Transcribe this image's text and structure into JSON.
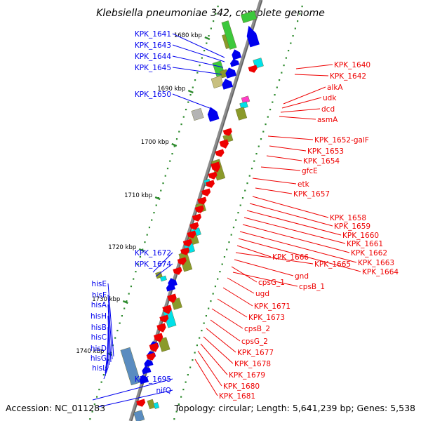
{
  "title": "Klebsiella pneumoniae 342, complete genome",
  "footer": {
    "accession": "Accession: NC_011283",
    "topology": "Topology: circular; Length: 5,641,239 bp; Genes: 5,538"
  },
  "scale_marks": [
    "1680 kbp",
    "1690 kbp",
    "1700 kbp",
    "1710 kbp",
    "1720 kbp",
    "1730 kbp",
    "1740 kbp"
  ],
  "left_labels": [
    "KPK_1641",
    "KPK_1643",
    "KPK_1644",
    "KPK_1645",
    "KPK_1650",
    "KPK_1672",
    "KPK_1674",
    "hisE",
    "hisF",
    "hisA",
    "hisH",
    "hisB",
    "hisC",
    "hisD",
    "hisG",
    "hisL",
    "KPK_1695",
    "nifQ"
  ],
  "right_labels": [
    "KPK_1640",
    "KPK_1642",
    "alkA",
    "udk",
    "dcd",
    "asmA",
    "KPK_1652-galF",
    "KPK_1653",
    "KPK_1654",
    "gfcE",
    "etk",
    "KPK_1657",
    "KPK_1658",
    "KPK_1659",
    "KPK_1660",
    "KPK_1661",
    "KPK_1662",
    "KPK_1663",
    "KPK_1664",
    "KPK_1666",
    "KPK_1665",
    "gnd",
    "cpsG_1",
    "cpsB_1",
    "ugd",
    "KPK_1671",
    "KPK_1673",
    "cpsB_2",
    "cpsG_2",
    "KPK_1677",
    "KPK_1678",
    "KPK_1679",
    "KPK_1680",
    "KPK_1681"
  ],
  "colors": {
    "forward_strand": "#0000ee",
    "reverse_strand": "#ee0000",
    "backbone": "#8c8c8c",
    "tick": "#2e8b2e",
    "orf_olive": "#8a9a2a",
    "orf_cyan": "#00e0e8",
    "orf_green": "#3cc83c",
    "orf_magenta": "#ff3cc8",
    "orf_tan": "#c8c080",
    "orf_grey": "#b4b4b4",
    "orf_steel": "#5a8cc0"
  }
}
